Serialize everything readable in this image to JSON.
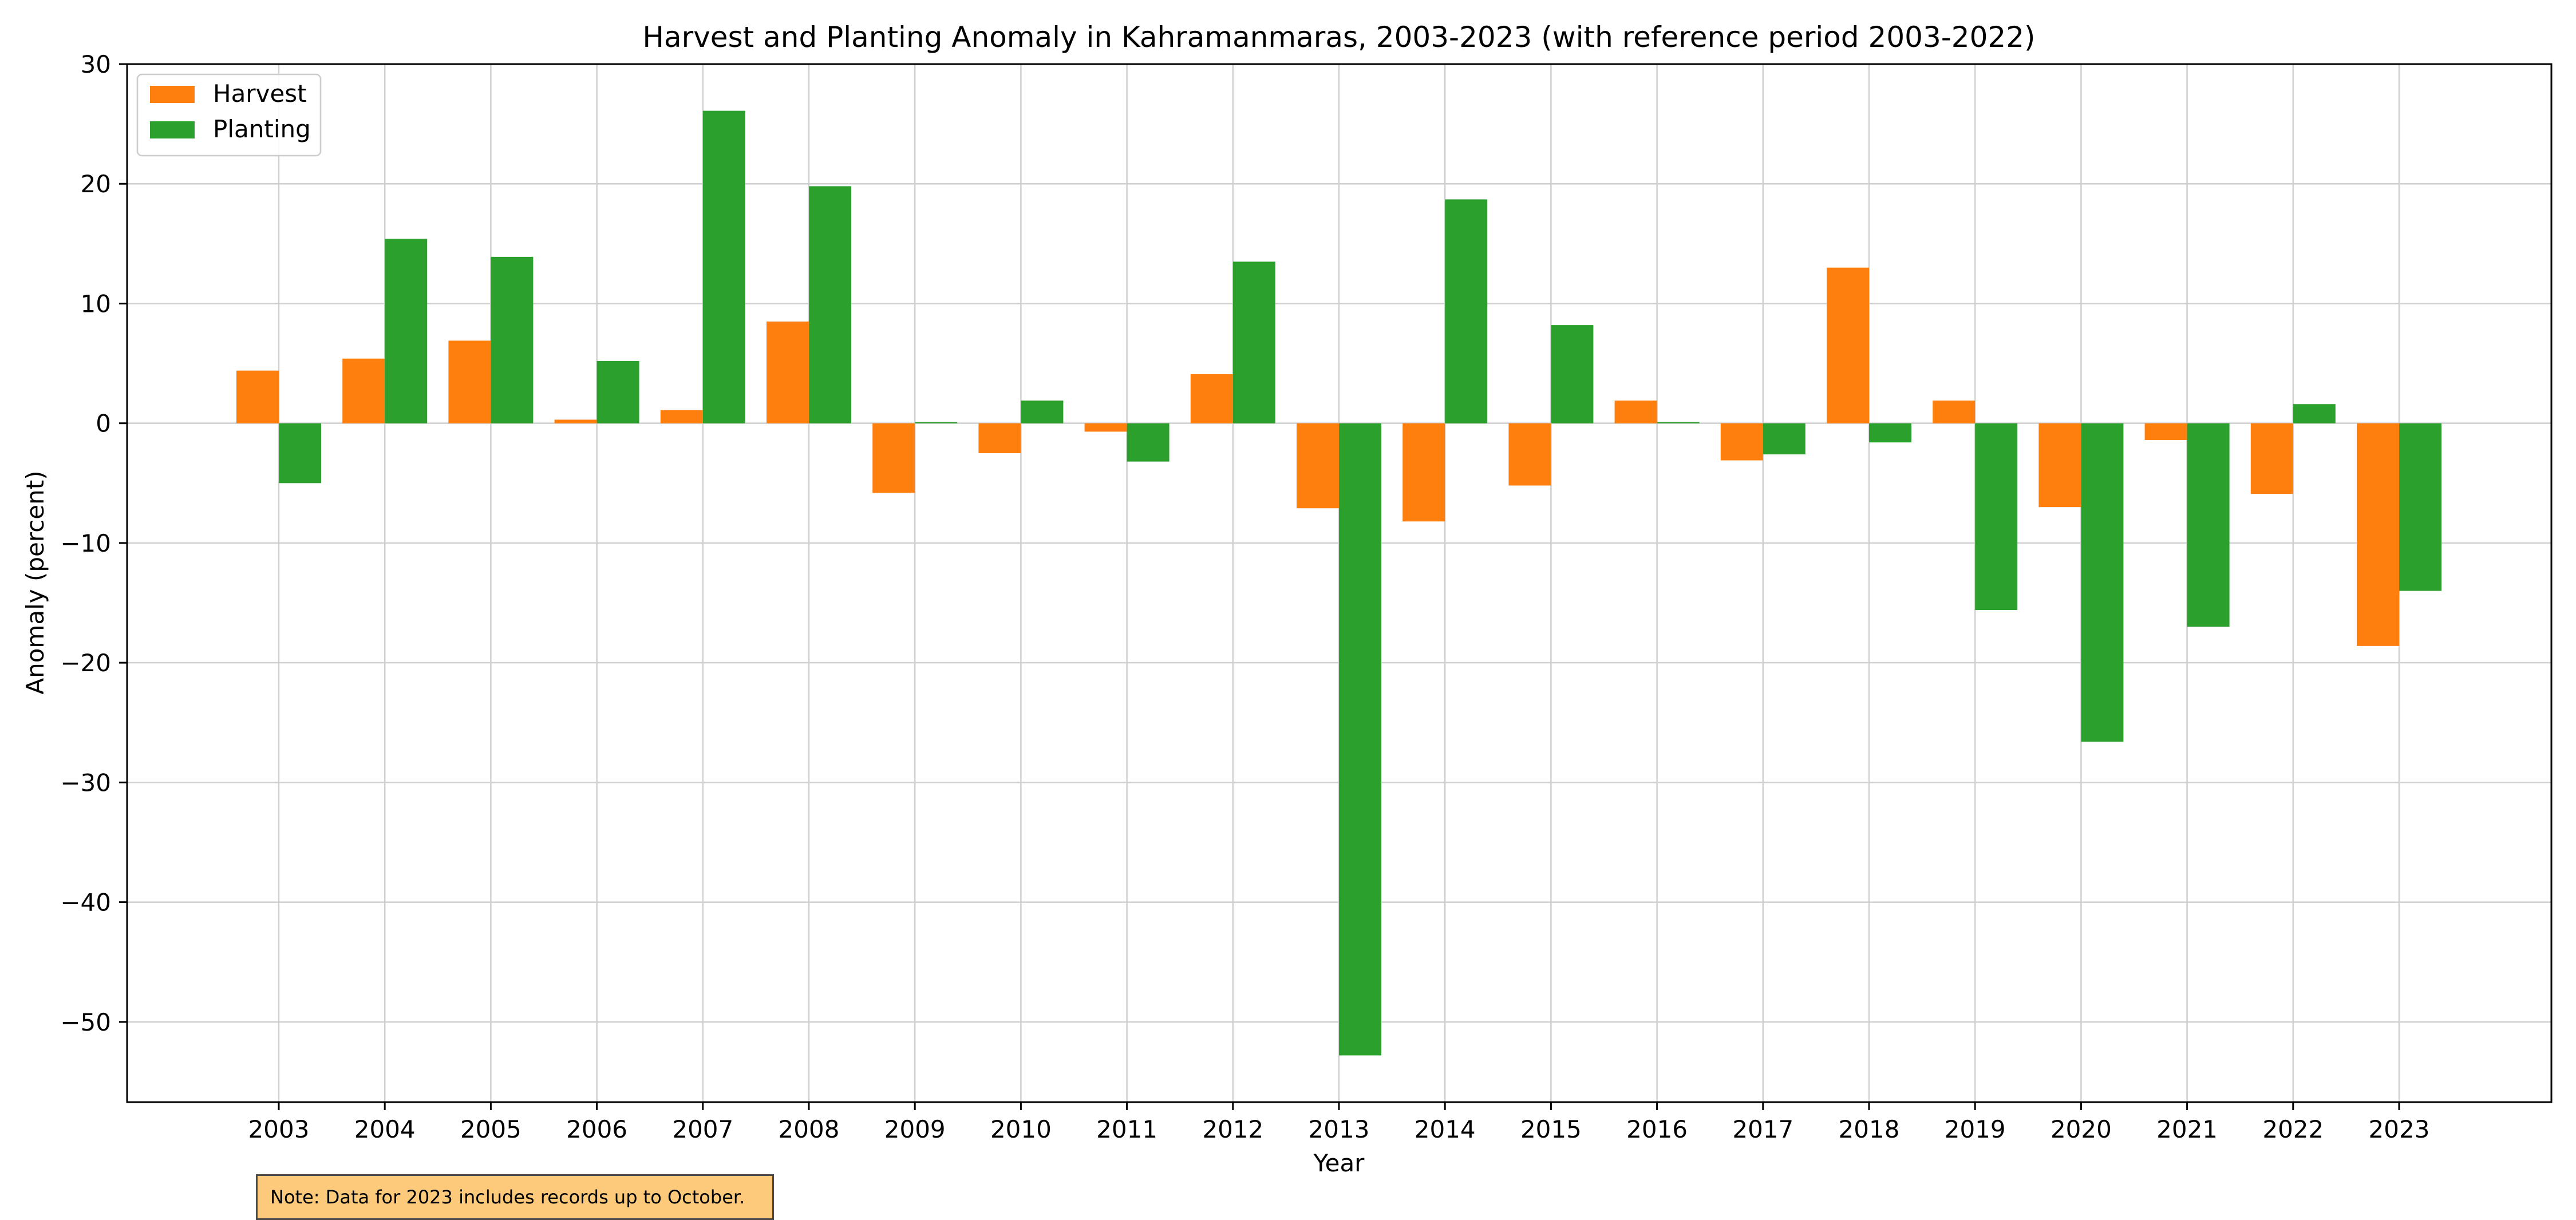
{
  "chart_data": {
    "type": "bar",
    "title": "Harvest and Planting Anomaly in Kahramanmaras, 2003-2023 (with reference period 2003-2022)",
    "xlabel": "Year",
    "ylabel": "Anomaly (percent)",
    "categories": [
      "2003",
      "2004",
      "2005",
      "2006",
      "2007",
      "2008",
      "2009",
      "2010",
      "2011",
      "2012",
      "2013",
      "2014",
      "2015",
      "2016",
      "2017",
      "2018",
      "2019",
      "2020",
      "2021",
      "2022",
      "2023"
    ],
    "series": [
      {
        "name": "Harvest",
        "color": "#ff7f0e",
        "values": [
          4.4,
          5.4,
          6.9,
          0.3,
          1.1,
          8.5,
          -5.8,
          -2.5,
          -0.7,
          4.1,
          -7.1,
          -8.2,
          -5.2,
          1.9,
          -3.1,
          13.0,
          1.9,
          -7.0,
          -1.4,
          -5.9,
          -18.6
        ]
      },
      {
        "name": "Planting",
        "color": "#2ca02c",
        "values": [
          -5.0,
          15.4,
          13.9,
          5.2,
          26.1,
          19.8,
          0.1,
          1.9,
          -3.2,
          13.5,
          -52.8,
          18.7,
          8.2,
          0.1,
          -2.6,
          -1.6,
          -15.6,
          -26.6,
          -17.0,
          1.6,
          -14.0
        ]
      }
    ],
    "yticks": [
      30,
      20,
      10,
      0,
      -10,
      -20,
      -30,
      -40,
      -50
    ],
    "ylim": [
      -56.7,
      30
    ],
    "grid": true,
    "legend_position": "top-left"
  },
  "note": "Note: Data for 2023 includes records up to October."
}
